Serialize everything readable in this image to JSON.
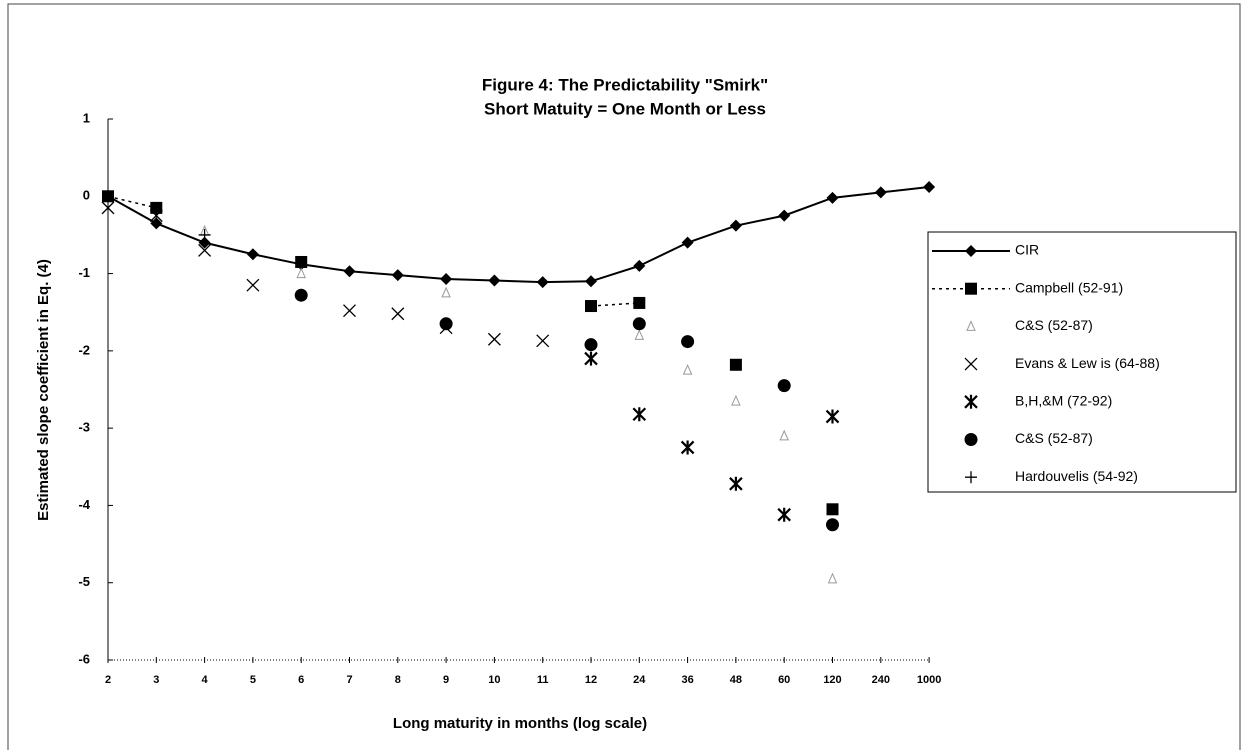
{
  "chart_data": {
    "type": "line",
    "title": "Figure 4:  The Predictability \"Smirk\"",
    "subtitle": "Short Matuity = One Month or Less",
    "y_label": "Estimated slope coefficient in Eq. (4)",
    "x_label": "Long maturity in months (log scale)",
    "categories": [
      2,
      3,
      4,
      5,
      6,
      7,
      8,
      9,
      10,
      11,
      12,
      24,
      36,
      48,
      60,
      120,
      240,
      1000
    ],
    "ylim": [
      -6,
      1
    ],
    "yticks": [
      1,
      0,
      -1,
      -2,
      -3,
      -4,
      -5,
      -6
    ],
    "legend": "right",
    "series": [
      {
        "name": "CIR",
        "color": "#000000",
        "line": "solid",
        "marker": "diamond",
        "values": [
          0,
          -0.35,
          -0.6,
          -0.75,
          -0.88,
          -0.97,
          -1.02,
          -1.07,
          -1.09,
          -1.11,
          -1.1,
          -0.9,
          -0.6,
          -0.38,
          -0.25,
          -0.02,
          0.05,
          0.12
        ]
      },
      {
        "name": "Campbell (52-91)",
        "color": "#000000",
        "line": "dotted",
        "marker": "square",
        "values": [
          0,
          -0.15,
          null,
          null,
          -0.85,
          null,
          null,
          null,
          null,
          null,
          -1.42,
          -1.38,
          null,
          -2.18,
          null,
          -4.05,
          null,
          null
        ]
      },
      {
        "name": "C&S (52-87)",
        "color": "#999999",
        "line": "none",
        "marker": "triangle",
        "values": [
          null,
          null,
          -0.45,
          null,
          -1.0,
          null,
          null,
          -1.25,
          null,
          null,
          null,
          -1.8,
          -2.25,
          -2.65,
          -3.1,
          -4.95,
          null,
          null
        ]
      },
      {
        "name": "Evans & Lew is (64-88)",
        "color": "#000000",
        "line": "none",
        "marker": "x",
        "values": [
          -0.15,
          -0.25,
          -0.7,
          -1.15,
          null,
          -1.48,
          -1.52,
          -1.7,
          -1.85,
          -1.87,
          null,
          null,
          null,
          null,
          null,
          null,
          null,
          null
        ]
      },
      {
        "name": "B,H,&M (72-92)",
        "color": "#000000",
        "line": "none",
        "marker": "star",
        "values": [
          null,
          null,
          null,
          null,
          null,
          null,
          null,
          null,
          null,
          null,
          -2.1,
          -2.82,
          -3.25,
          -3.72,
          -4.12,
          -2.85,
          null,
          null
        ]
      },
      {
        "name": "C&S (52-87)",
        "color": "#000000",
        "line": "none",
        "marker": "circle",
        "values": [
          null,
          null,
          null,
          null,
          -1.28,
          null,
          null,
          -1.65,
          null,
          null,
          -1.92,
          -1.65,
          -1.88,
          null,
          -2.45,
          -4.25,
          null,
          null
        ]
      },
      {
        "name": "Hardouvelis (54-92)",
        "color": "#000000",
        "line": "none",
        "marker": "plus",
        "values": [
          null,
          -0.2,
          -0.5,
          null,
          null,
          null,
          null,
          null,
          null,
          null,
          null,
          null,
          null,
          null,
          null,
          null,
          null,
          null
        ]
      }
    ]
  }
}
